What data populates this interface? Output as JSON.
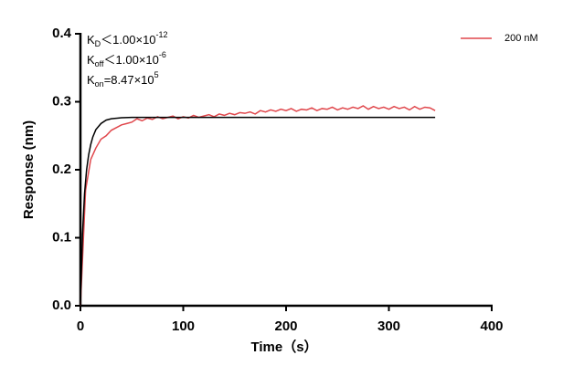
{
  "chart_data": {
    "type": "line",
    "xlabel": "Time（s）",
    "ylabel": "Response (nm)",
    "xlim": [
      0,
      400
    ],
    "xticks": [
      0,
      100,
      200,
      300,
      400
    ],
    "ylim": [
      0,
      0.4
    ],
    "yticks": [
      {
        "value": 0,
        "label": "0.0"
      },
      0.1,
      0.2,
      0.3,
      0.4
    ],
    "legend": "top-right",
    "annotations": [
      {
        "main": "K",
        "sub": "D",
        "text": "＜1.00×10",
        "sup": "-12"
      },
      {
        "main": "K",
        "sub": "off",
        "text": "＜1.00×10",
        "sup": "-6"
      },
      {
        "main": "K",
        "sub": "on",
        "text": "=8.47×10",
        "sup": "5"
      }
    ],
    "series": [
      {
        "name": "200 nM",
        "color": "#e0474c",
        "x": [
          0,
          5,
          10,
          15,
          20,
          25,
          30,
          35,
          40,
          45,
          50,
          55,
          60,
          65,
          70,
          75,
          80,
          85,
          90,
          95,
          100,
          105,
          110,
          115,
          120,
          125,
          130,
          135,
          140,
          145,
          150,
          155,
          160,
          165,
          170,
          175,
          180,
          185,
          190,
          195,
          200,
          205,
          210,
          215,
          220,
          225,
          230,
          235,
          240,
          245,
          250,
          255,
          260,
          265,
          270,
          275,
          280,
          285,
          290,
          295,
          300,
          305,
          310,
          315,
          320,
          325,
          330,
          335,
          340,
          345
        ],
        "values": [
          0,
          0.17,
          0.215,
          0.232,
          0.245,
          0.25,
          0.258,
          0.262,
          0.266,
          0.268,
          0.27,
          0.275,
          0.272,
          0.276,
          0.274,
          0.278,
          0.275,
          0.277,
          0.279,
          0.275,
          0.278,
          0.276,
          0.28,
          0.277,
          0.279,
          0.281,
          0.278,
          0.282,
          0.28,
          0.283,
          0.281,
          0.284,
          0.283,
          0.285,
          0.282,
          0.287,
          0.285,
          0.288,
          0.286,
          0.289,
          0.287,
          0.29,
          0.286,
          0.289,
          0.288,
          0.291,
          0.287,
          0.29,
          0.289,
          0.292,
          0.288,
          0.291,
          0.289,
          0.292,
          0.29,
          0.294,
          0.289,
          0.293,
          0.29,
          0.292,
          0.289,
          0.293,
          0.29,
          0.292,
          0.288,
          0.293,
          0.289,
          0.292,
          0.291,
          0.287
        ]
      },
      {
        "color": "#000000",
        "x": [
          0,
          2,
          4,
          6,
          8,
          10,
          12,
          15,
          20,
          25,
          30,
          40,
          50,
          60,
          345
        ],
        "values": [
          0,
          0.105,
          0.165,
          0.2,
          0.222,
          0.237,
          0.248,
          0.259,
          0.268,
          0.273,
          0.275,
          0.2765,
          0.277,
          0.277,
          0.277
        ]
      }
    ]
  }
}
